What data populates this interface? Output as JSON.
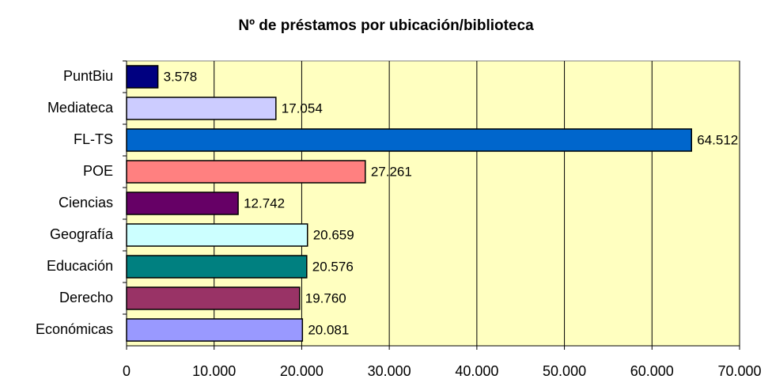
{
  "chart_data": {
    "type": "bar",
    "orientation": "horizontal",
    "title": "Nº de préstamos por ubicación/biblioteca",
    "categories": [
      "PuntBiu",
      "Mediateca",
      "FL-TS",
      "POE",
      "Ciencias",
      "Geografía",
      "Educación",
      "Derecho",
      "Económicas"
    ],
    "values": [
      3578,
      17054,
      64512,
      27261,
      12742,
      20659,
      20576,
      19760,
      20081
    ],
    "value_labels": [
      "3.578",
      "17.054",
      "64.512",
      "27.261",
      "12.742",
      "20.659",
      "20.576",
      "19.760",
      "20.081"
    ],
    "colors": [
      "#000080",
      "#ccccff",
      "#0066cc",
      "#ff8080",
      "#660066",
      "#ccffff",
      "#008080",
      "#993366",
      "#9999ff"
    ],
    "xlim": [
      0,
      70000
    ],
    "xticks": [
      0,
      {
        "value": 10000,
        "label": "10.000"
      },
      {
        "value": 20000,
        "label": "20.000"
      },
      {
        "value": 30000,
        "label": "30.000"
      },
      {
        "value": 40000,
        "label": "40.000"
      },
      {
        "value": 50000,
        "label": "50.000"
      },
      {
        "value": 60000,
        "label": "60.000"
      },
      {
        "value": 70000,
        "label": "70.000"
      }
    ],
    "grid": true
  }
}
